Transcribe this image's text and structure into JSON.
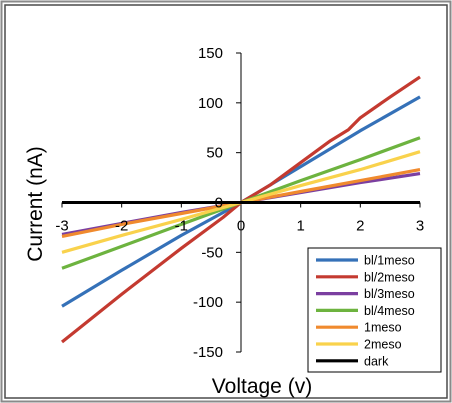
{
  "chart_data": {
    "type": "line",
    "title": "",
    "xlabel": "Voltage (v)",
    "ylabel": "Current (nA)",
    "xlim": [
      -3,
      3
    ],
    "ylim": [
      -150,
      150
    ],
    "x_ticks": [
      -3,
      -2,
      -1,
      0,
      1,
      2,
      3
    ],
    "y_ticks": [
      150,
      100,
      50,
      0,
      -50,
      -100,
      -150
    ],
    "x_tick_labels": [
      "-3",
      "-2",
      "-1",
      "0",
      "1",
      "2",
      "3"
    ],
    "y_tick_labels": [
      "150",
      "100",
      "50",
      "0",
      "-50",
      "-100",
      "-150"
    ],
    "grid": false,
    "legend_position": "bottom-right",
    "series": [
      {
        "name": "bl/1meso",
        "color": "#3571b8",
        "x": [
          -3,
          -2,
          -1,
          -0.3,
          0,
          1,
          2,
          3
        ],
        "y": [
          -104,
          -68,
          -33,
          -10,
          0,
          36,
          72,
          106
        ]
      },
      {
        "name": "bl/2meso",
        "color": "#c43a30",
        "x": [
          -3,
          -2,
          -1,
          -0.3,
          0,
          0.5,
          1,
          1.5,
          1.8,
          2,
          2.5,
          3
        ],
        "y": [
          -140,
          -92,
          -46,
          -15,
          0,
          18,
          40,
          62,
          73,
          85,
          106,
          126
        ]
      },
      {
        "name": "bl/3meso",
        "color": "#7b3fa0",
        "x": [
          -3,
          -2,
          -1,
          0,
          1,
          2,
          3
        ],
        "y": [
          -32,
          -21,
          -10,
          0,
          10,
          20,
          29
        ]
      },
      {
        "name": "bl/4meso",
        "color": "#6db33f",
        "x": [
          -3,
          -2,
          -1,
          0,
          1,
          2,
          3
        ],
        "y": [
          -66,
          -44,
          -22,
          0,
          22,
          43,
          65
        ]
      },
      {
        "name": "1meso",
        "color": "#f08a2e",
        "x": [
          -3,
          -2,
          -1,
          0,
          1,
          2,
          3
        ],
        "y": [
          -34,
          -22,
          -11,
          0,
          11,
          22,
          33
        ]
      },
      {
        "name": "2meso",
        "color": "#f9d24c",
        "x": [
          -3,
          -2,
          -1,
          0,
          1,
          2,
          3
        ],
        "y": [
          -50,
          -33,
          -17,
          0,
          17,
          33,
          51
        ]
      },
      {
        "name": "dark",
        "color": "#000000",
        "x": [
          -3,
          3
        ],
        "y": [
          0,
          0
        ]
      }
    ]
  }
}
